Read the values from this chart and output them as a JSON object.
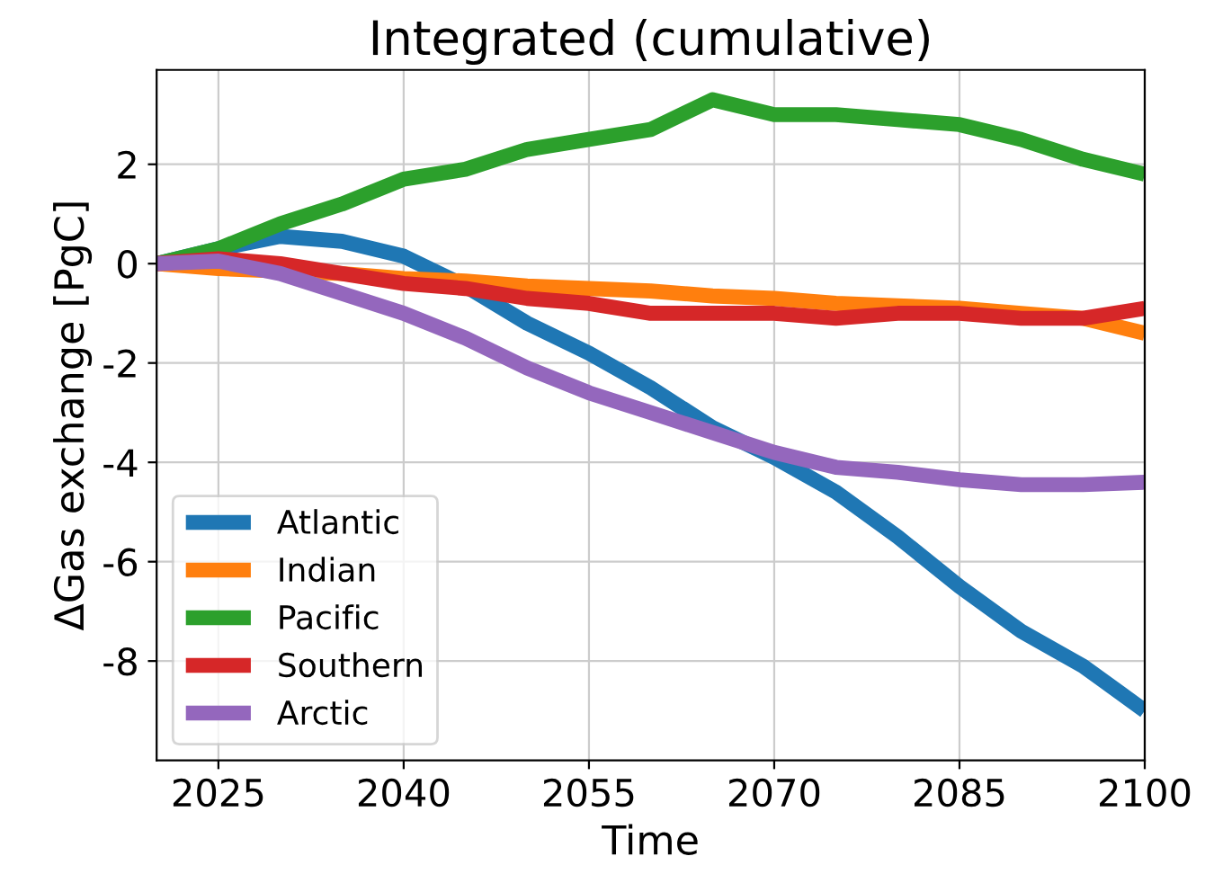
{
  "chart_data": {
    "type": "line",
    "title": "Integrated (cumulative)",
    "xlabel": "Time",
    "ylabel": "ΔGas exchange [PgC]",
    "x": [
      2020,
      2025,
      2030,
      2035,
      2040,
      2045,
      2050,
      2055,
      2060,
      2065,
      2070,
      2075,
      2080,
      2085,
      2090,
      2095,
      2100
    ],
    "series": [
      {
        "name": "Atlantic",
        "color": "#1f77b4",
        "values": [
          0,
          0.3,
          0.55,
          0.45,
          0.15,
          -0.45,
          -1.2,
          -1.8,
          -2.5,
          -3.3,
          -3.9,
          -4.6,
          -5.5,
          -6.5,
          -7.4,
          -8.1,
          -9.0
        ]
      },
      {
        "name": "Indian",
        "color": "#ff7f0e",
        "values": [
          0,
          -0.1,
          -0.15,
          -0.2,
          -0.3,
          -0.35,
          -0.45,
          -0.5,
          -0.55,
          -0.65,
          -0.7,
          -0.8,
          -0.85,
          -0.9,
          -1.0,
          -1.1,
          -1.4
        ]
      },
      {
        "name": "Pacific",
        "color": "#2ca02c",
        "values": [
          0,
          0.3,
          0.8,
          1.2,
          1.7,
          1.9,
          2.3,
          2.5,
          2.7,
          3.3,
          3.0,
          3.0,
          2.9,
          2.8,
          2.5,
          2.1,
          1.8
        ]
      },
      {
        "name": "Southern",
        "color": "#d62728",
        "values": [
          0,
          0.1,
          0.0,
          -0.2,
          -0.4,
          -0.5,
          -0.7,
          -0.8,
          -1.0,
          -1.0,
          -1.0,
          -1.1,
          -1.0,
          -1.0,
          -1.1,
          -1.1,
          -0.9
        ]
      },
      {
        "name": "Arctic",
        "color": "#9467bd",
        "values": [
          0,
          0.05,
          -0.2,
          -0.6,
          -1.0,
          -1.5,
          -2.1,
          -2.6,
          -3.0,
          -3.4,
          -3.8,
          -4.1,
          -4.2,
          -4.35,
          -4.45,
          -4.45,
          -4.4
        ]
      }
    ],
    "xlim": [
      2020,
      2100
    ],
    "xticks": [
      2025,
      2040,
      2055,
      2070,
      2085,
      2100
    ],
    "ylim": [
      -10,
      3.9
    ],
    "yticks": [
      -8,
      -6,
      -4,
      -2,
      0,
      2
    ],
    "grid": true,
    "legend": "bottom left"
  }
}
